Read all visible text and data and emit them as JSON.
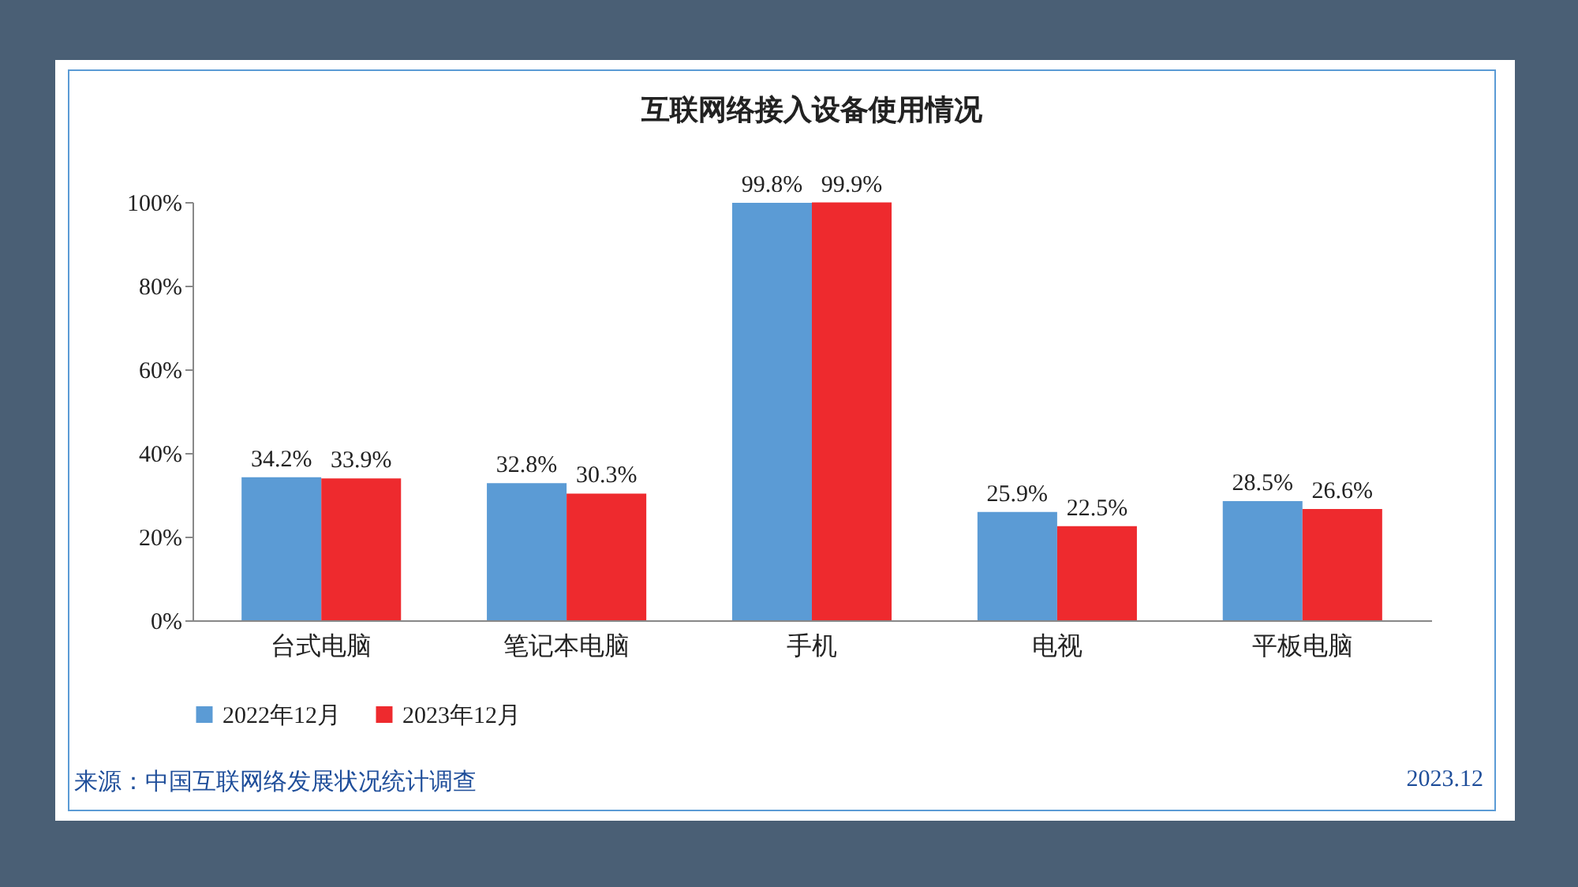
{
  "chart_data": {
    "type": "bar",
    "title": "互联网络接入设备使用情况",
    "categories": [
      "台式电脑",
      "笔记本电脑",
      "手机",
      "电视",
      "平板电脑"
    ],
    "series": [
      {
        "name": "2022年12月",
        "color": "#5b9bd5",
        "values": [
          34.2,
          32.8,
          99.8,
          25.9,
          28.5
        ],
        "value_labels": [
          "34.2%",
          "32.8%",
          "99.8%",
          "25.9%",
          "28.5%"
        ]
      },
      {
        "name": "2023年12月",
        "color": "#ee2a2e",
        "values": [
          33.9,
          30.3,
          99.9,
          22.5,
          26.6
        ],
        "value_labels": [
          "33.9%",
          "30.3%",
          "99.9%",
          "22.5%",
          "26.6%"
        ]
      }
    ],
    "ylim": [
      0,
      100
    ],
    "yticks": [
      {
        "value": 0,
        "label": "0%"
      },
      {
        "value": 20,
        "label": "20%"
      },
      {
        "value": 40,
        "label": "40%"
      },
      {
        "value": 60,
        "label": "60%"
      },
      {
        "value": 80,
        "label": "80%"
      },
      {
        "value": 100,
        "label": "100%"
      }
    ],
    "grid": false,
    "legend": "bottom",
    "annotations": [
      "来源：中国互联网络发展状况统计调查",
      "2023.12"
    ]
  }
}
